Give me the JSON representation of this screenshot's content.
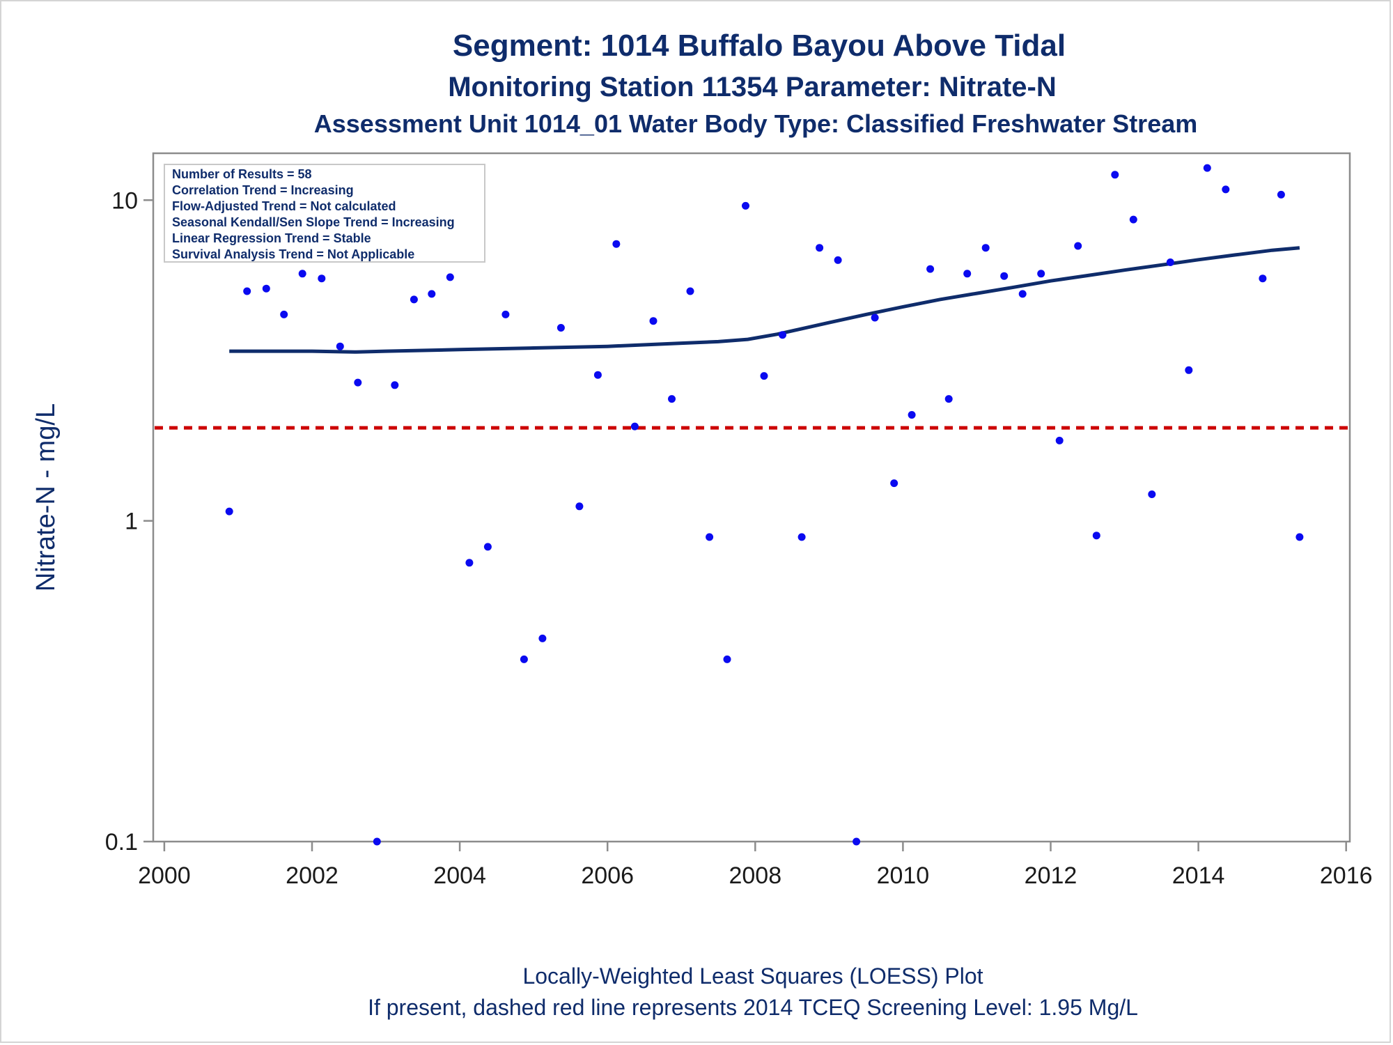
{
  "titles": {
    "line1": "Segment: 1014  Buffalo Bayou Above Tidal",
    "line2": "Monitoring Station 11354 Parameter: Nitrate-N",
    "line3": "Assessment Unit 1014_01   Water Body Type: Classified Freshwater Stream"
  },
  "footnotes": {
    "line1": "Locally-Weighted Least Squares (LOESS) Plot",
    "line2": "If present, dashed red line represents 2014 TCEQ Screening Level: 1.95 Mg/L"
  },
  "legend_box": {
    "lines": [
      "Number of Results = 58",
      "Correlation Trend = Increasing",
      "Flow-Adjusted Trend = Not calculated",
      "Seasonal Kendall/Sen Slope Trend = Increasing",
      "Linear Regression Trend = Stable",
      "Survival Analysis Trend = Not Applicable"
    ]
  },
  "colors": {
    "title": "#0f2c6b",
    "points": "#0a0af0",
    "loess": "#0f2c6b",
    "screening": "#cc0000",
    "axis": "#8c8c8c"
  },
  "chart_data": {
    "type": "scatter",
    "title": "Segment: 1014  Buffalo Bayou Above Tidal",
    "xlabel": "",
    "ylabel": "Nitrate-N - mg/L",
    "xlim": [
      1999.85,
      2016.05
    ],
    "ylim": [
      0.1,
      14.0
    ],
    "yscale": "log",
    "grid": false,
    "legend_position": "top-left",
    "x_ticks": [
      2000,
      2002,
      2004,
      2006,
      2008,
      2010,
      2012,
      2014,
      2016
    ],
    "x_tick_labels": [
      "2000",
      "2002",
      "2004",
      "2006",
      "2008",
      "2010",
      "2012",
      "2014",
      "2016"
    ],
    "y_ticks": [
      0.1,
      1,
      10
    ],
    "y_tick_labels": [
      "0.1",
      "1",
      "10"
    ],
    "screening_level": 1.95,
    "series": [
      {
        "type": "scatter",
        "points": [
          [
            2000.88,
            1.07
          ],
          [
            2001.12,
            5.2
          ],
          [
            2001.38,
            5.3
          ],
          [
            2001.62,
            4.4
          ],
          [
            2001.87,
            5.9
          ],
          [
            2002.13,
            5.7
          ],
          [
            2002.38,
            3.5
          ],
          [
            2002.62,
            2.7
          ],
          [
            2002.88,
            0.1
          ],
          [
            2003.12,
            2.65
          ],
          [
            2003.38,
            4.9
          ],
          [
            2003.62,
            5.1
          ],
          [
            2003.87,
            5.75
          ],
          [
            2004.13,
            0.74
          ],
          [
            2004.38,
            0.83
          ],
          [
            2004.62,
            4.4
          ],
          [
            2004.87,
            0.37
          ],
          [
            2005.12,
            0.43
          ],
          [
            2005.37,
            4.0
          ],
          [
            2005.62,
            1.11
          ],
          [
            2005.87,
            2.85
          ],
          [
            2006.12,
            7.3
          ],
          [
            2006.37,
            1.97
          ],
          [
            2006.62,
            4.2
          ],
          [
            2006.87,
            2.4
          ],
          [
            2007.12,
            5.2
          ],
          [
            2007.38,
            0.89
          ],
          [
            2007.62,
            0.37
          ],
          [
            2007.87,
            9.6
          ],
          [
            2008.12,
            2.83
          ],
          [
            2008.37,
            3.8
          ],
          [
            2008.63,
            0.89
          ],
          [
            2008.87,
            7.1
          ],
          [
            2009.12,
            6.5
          ],
          [
            2009.37,
            0.1
          ],
          [
            2009.62,
            4.3
          ],
          [
            2009.88,
            1.31
          ],
          [
            2010.12,
            2.14
          ],
          [
            2010.37,
            6.1
          ],
          [
            2010.62,
            2.4
          ],
          [
            2010.87,
            5.9
          ],
          [
            2011.12,
            7.1
          ],
          [
            2011.37,
            5.8
          ],
          [
            2011.62,
            5.1
          ],
          [
            2011.87,
            5.9
          ],
          [
            2012.12,
            1.78
          ],
          [
            2012.37,
            7.2
          ],
          [
            2012.62,
            0.9
          ],
          [
            2012.87,
            12.0
          ],
          [
            2013.12,
            8.7
          ],
          [
            2013.37,
            1.21
          ],
          [
            2013.62,
            6.4
          ],
          [
            2013.87,
            2.95
          ],
          [
            2014.12,
            12.6
          ],
          [
            2014.37,
            10.8
          ],
          [
            2014.87,
            5.7
          ],
          [
            2015.12,
            10.4
          ],
          [
            2015.37,
            0.89
          ]
        ]
      },
      {
        "type": "line",
        "points": [
          [
            2000.88,
            3.38
          ],
          [
            2002.0,
            3.38
          ],
          [
            2002.6,
            3.36
          ],
          [
            2003.0,
            3.38
          ],
          [
            2004.0,
            3.42
          ],
          [
            2005.0,
            3.46
          ],
          [
            2006.0,
            3.5
          ],
          [
            2007.0,
            3.58
          ],
          [
            2007.5,
            3.62
          ],
          [
            2007.9,
            3.68
          ],
          [
            2008.3,
            3.82
          ],
          [
            2009.0,
            4.15
          ],
          [
            2009.5,
            4.4
          ],
          [
            2010.0,
            4.65
          ],
          [
            2010.5,
            4.9
          ],
          [
            2011.0,
            5.12
          ],
          [
            2011.5,
            5.35
          ],
          [
            2012.0,
            5.6
          ],
          [
            2012.5,
            5.82
          ],
          [
            2013.0,
            6.05
          ],
          [
            2013.5,
            6.28
          ],
          [
            2014.0,
            6.52
          ],
          [
            2014.5,
            6.75
          ],
          [
            2015.0,
            6.98
          ],
          [
            2015.37,
            7.1
          ]
        ]
      }
    ]
  }
}
